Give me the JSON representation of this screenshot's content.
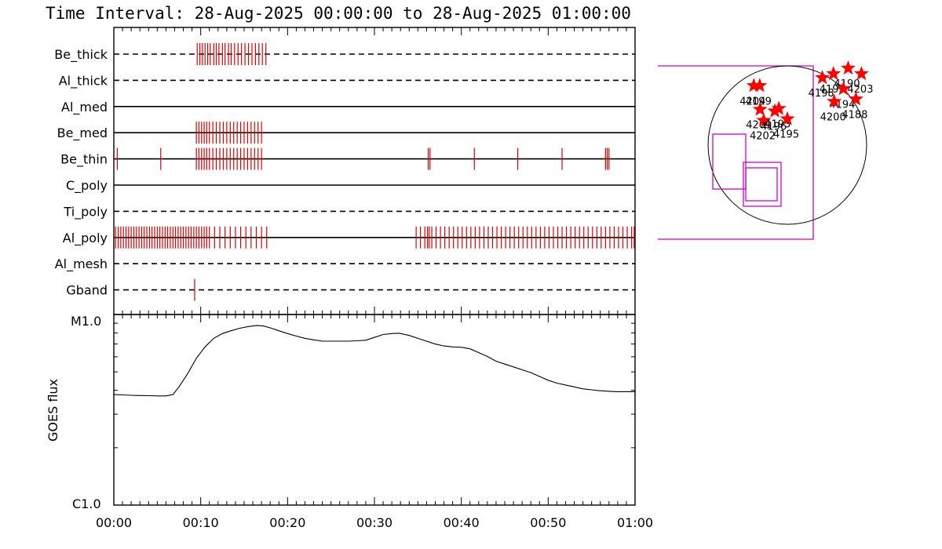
{
  "title": "Time Interval: 28-Aug-2025 00:00:00 to 28-Aug-2025 01:00:00",
  "colors": {
    "event": "#e00000",
    "box": "#cc00cc",
    "star": "#ff0000",
    "axis": "#000000"
  },
  "chart_data": [
    {
      "type": "scatter",
      "name": "filter-events",
      "xlim": [
        0,
        60
      ],
      "x_unit": "minutes",
      "tick_labels": [
        "00:00",
        "00:10",
        "00:20",
        "00:30",
        "00:40",
        "00:50",
        "01:00"
      ],
      "tick_minutes": [
        0,
        10,
        20,
        30,
        40,
        50,
        60
      ],
      "channels": [
        {
          "label": "Be_thick",
          "style": "dashed",
          "events": [
            9.6,
            9.9,
            10.2,
            10.5,
            10.8,
            11.1,
            11.5,
            11.8,
            12.1,
            12.5,
            12.8,
            13.2,
            13.5,
            13.9,
            14.3,
            14.7,
            15.1,
            15.5,
            15.9,
            16.3,
            16.7,
            17.1,
            17.5
          ]
        },
        {
          "label": "Al_thick",
          "style": "dashed",
          "events": []
        },
        {
          "label": "Al_med",
          "style": "solid",
          "events": []
        },
        {
          "label": "Be_med",
          "style": "solid",
          "events": [
            9.5,
            9.8,
            10.1,
            10.4,
            10.7,
            11.0,
            11.4,
            11.8,
            12.2,
            12.6,
            13.0,
            13.4,
            13.8,
            14.2,
            14.6,
            15.0,
            15.4,
            15.8,
            16.2,
            16.6,
            17.0
          ]
        },
        {
          "label": "Be_thin",
          "style": "solid",
          "events": [
            0.4,
            5.4,
            9.5,
            9.8,
            10.1,
            10.4,
            10.7,
            11.0,
            11.4,
            11.8,
            12.2,
            12.6,
            13.0,
            13.4,
            13.8,
            14.2,
            14.6,
            15.0,
            15.4,
            15.8,
            16.2,
            16.6,
            17.0,
            36.2,
            36.4,
            41.5,
            46.5,
            51.6,
            56.6,
            56.8,
            57.0
          ]
        },
        {
          "label": "C_poly",
          "style": "solid",
          "events": []
        },
        {
          "label": "Ti_poly",
          "style": "dashed",
          "events": []
        },
        {
          "label": "Al_poly",
          "style": "solid",
          "events": [
            0.2,
            0.5,
            0.8,
            1.1,
            1.4,
            1.7,
            2.0,
            2.3,
            2.6,
            2.9,
            3.2,
            3.5,
            3.8,
            4.1,
            4.4,
            4.7,
            5.0,
            5.3,
            5.6,
            5.9,
            6.2,
            6.5,
            6.8,
            7.1,
            7.4,
            7.7,
            8.0,
            8.3,
            8.6,
            8.9,
            9.2,
            9.5,
            9.8,
            10.1,
            10.4,
            10.7,
            11.0,
            11.6,
            12.2,
            12.8,
            13.4,
            14.0,
            14.6,
            15.2,
            15.8,
            16.4,
            17.0,
            17.6,
            34.8,
            35.3,
            35.8,
            36.1,
            36.3,
            36.6,
            37.1,
            37.6,
            38.1,
            38.6,
            39.1,
            39.6,
            40.1,
            40.6,
            41.1,
            41.6,
            42.1,
            42.6,
            43.1,
            43.6,
            44.1,
            44.6,
            45.1,
            45.6,
            46.1,
            46.6,
            47.1,
            47.6,
            48.1,
            48.6,
            49.1,
            49.6,
            50.1,
            50.6,
            51.1,
            51.6,
            52.1,
            52.6,
            53.1,
            53.6,
            54.1,
            54.6,
            55.1,
            55.6,
            56.1,
            56.6,
            57.1,
            57.6,
            58.1,
            58.6,
            59.1,
            59.6,
            59.9
          ]
        },
        {
          "label": "Al_mesh",
          "style": "dashed",
          "events": []
        },
        {
          "label": "Gband",
          "style": "dashed",
          "events": [
            9.3
          ]
        }
      ]
    },
    {
      "type": "line",
      "name": "goes-flux",
      "ylabel": "GOES flux",
      "y_tick_labels": [
        "M1.0",
        "C1.0"
      ],
      "ylim_log": [
        -6,
        -5
      ],
      "xlim": [
        0,
        60
      ],
      "x": [
        0,
        1,
        2,
        3,
        4,
        5,
        6,
        6.8,
        7.5,
        8.5,
        9.5,
        10.5,
        11.5,
        12.5,
        13.5,
        14.5,
        15.5,
        16.5,
        17.2,
        18,
        19,
        20,
        21,
        22,
        23,
        24,
        25,
        26,
        27,
        28,
        29,
        30,
        31,
        32,
        32.8,
        34,
        35,
        36,
        37,
        38,
        39,
        40,
        41,
        42,
        43,
        44,
        45,
        46,
        47,
        48,
        49,
        50,
        51,
        52,
        53,
        54,
        55,
        56,
        57,
        58,
        59,
        60
      ],
      "y": [
        -5.42,
        -5.422,
        -5.424,
        -5.425,
        -5.426,
        -5.427,
        -5.427,
        -5.42,
        -5.38,
        -5.31,
        -5.23,
        -5.17,
        -5.125,
        -5.1,
        -5.085,
        -5.072,
        -5.063,
        -5.058,
        -5.06,
        -5.07,
        -5.085,
        -5.1,
        -5.113,
        -5.125,
        -5.133,
        -5.14,
        -5.14,
        -5.14,
        -5.14,
        -5.138,
        -5.135,
        -5.12,
        -5.105,
        -5.1,
        -5.098,
        -5.11,
        -5.125,
        -5.14,
        -5.155,
        -5.165,
        -5.17,
        -5.172,
        -5.18,
        -5.2,
        -5.22,
        -5.245,
        -5.26,
        -5.275,
        -5.29,
        -5.305,
        -5.325,
        -5.345,
        -5.36,
        -5.37,
        -5.38,
        -5.39,
        -5.395,
        -5.4,
        -5.403,
        -5.405,
        -5.405,
        -5.405
      ]
    },
    {
      "type": "scatter",
      "name": "solar-disk",
      "regions": [
        {
          "label": "4198",
          "x": 0.95,
          "y": 0.85
        },
        {
          "label": "4197",
          "x": 1.25,
          "y": 0.9
        },
        {
          "label": "4190",
          "x": 1.65,
          "y": 0.97
        },
        {
          "label": "4203",
          "x": 2.01,
          "y": 0.9
        },
        {
          "label": "4194",
          "x": 1.52,
          "y": 0.71
        },
        {
          "label": "4200",
          "x": 1.27,
          "y": 0.55
        },
        {
          "label": "4188",
          "x": 1.86,
          "y": 0.58
        },
        {
          "label": "4204",
          "x": -0.91,
          "y": 0.75
        },
        {
          "label": "4199",
          "x": -0.75,
          "y": 0.75
        },
        {
          "label": "4201",
          "x": -0.74,
          "y": 0.45
        },
        {
          "label": "4202",
          "x": -0.64,
          "y": 0.31
        },
        {
          "label": "4196",
          "x": -0.34,
          "y": 0.43
        },
        {
          "label": "4193",
          "x": -0.23,
          "y": 0.46
        },
        {
          "label": "4195",
          "x": 0.0,
          "y": 0.33
        }
      ]
    }
  ]
}
